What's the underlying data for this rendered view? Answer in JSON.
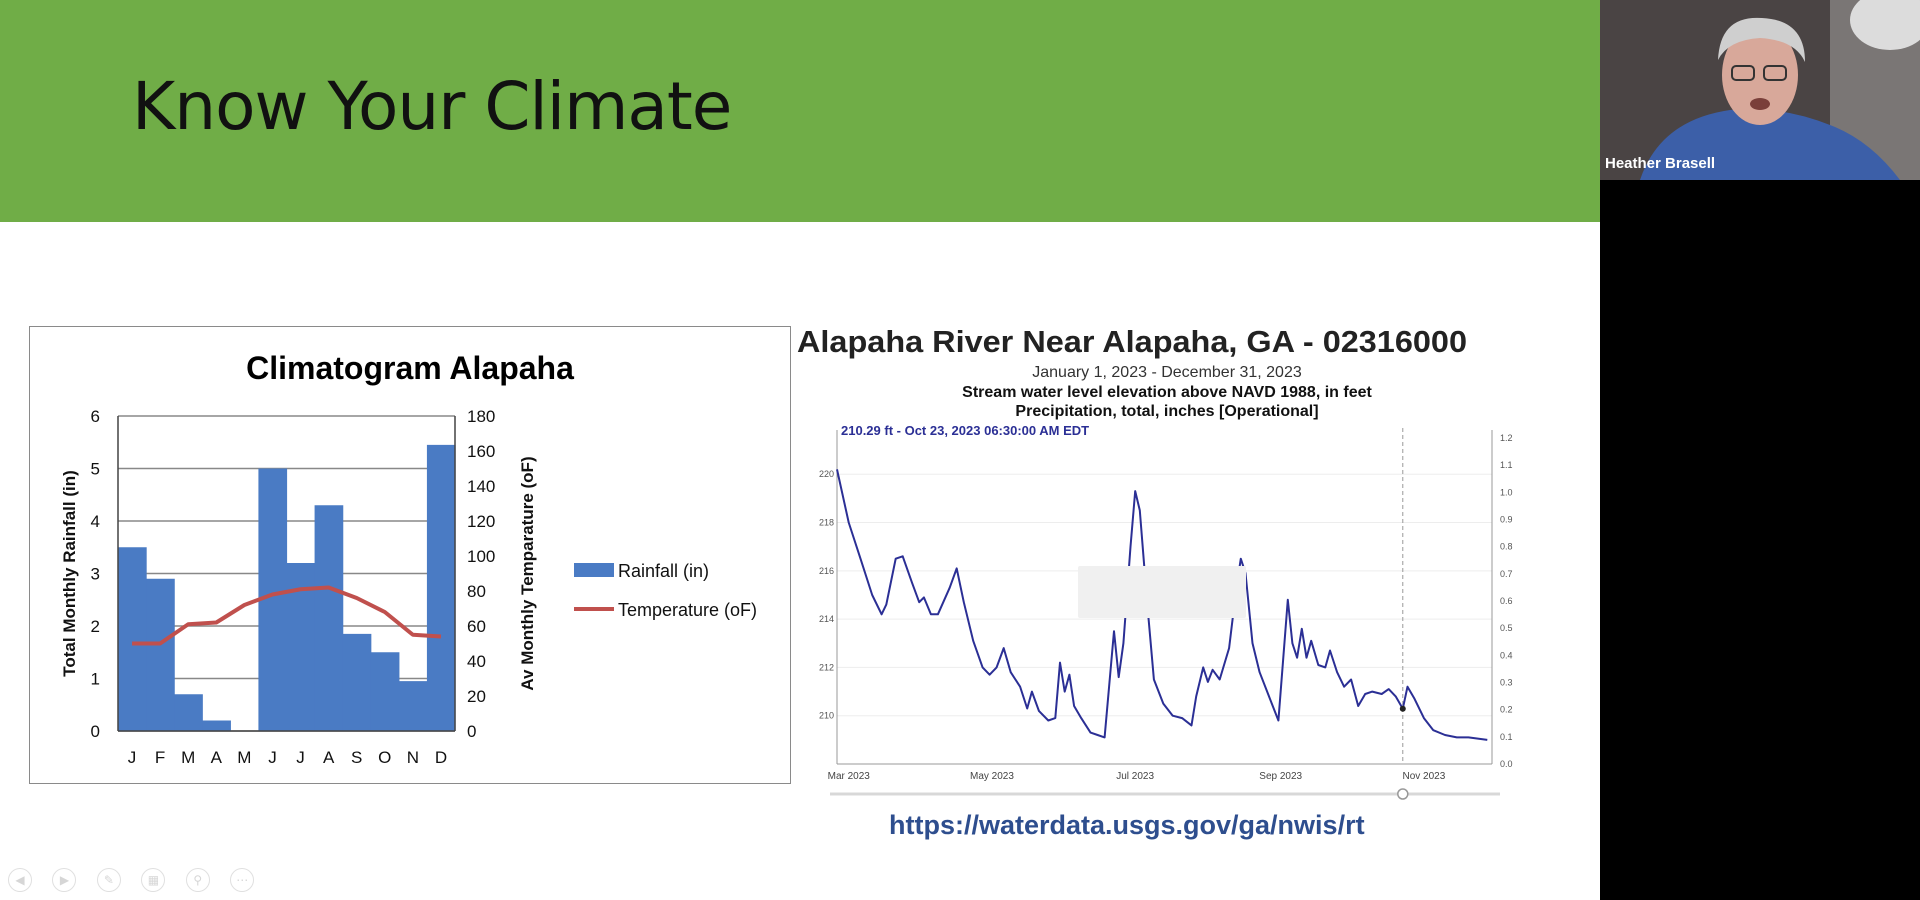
{
  "slide": {
    "title": "Know Your Climate",
    "colors": {
      "banner": "#70ad47",
      "bar": "#4a7bc4",
      "line": "#c0504d",
      "hydro_line": "#2b2f95",
      "link": "#2e4e8e"
    },
    "link": "https://waterdata.usgs.gov/ga/nwis/rt"
  },
  "chart_data": [
    {
      "type": "bar",
      "title": "Climatogram Alapaha",
      "categories": [
        "J",
        "F",
        "M",
        "A",
        "M",
        "J",
        "J",
        "A",
        "S",
        "O",
        "N",
        "D"
      ],
      "ylabel": "Total Monthly Rainfall (in)",
      "y2label": "Av Monthly Temparature (oF)",
      "ylim": [
        0,
        6
      ],
      "y_ticks": [
        "0",
        "1",
        "2",
        "3",
        "4",
        "5",
        "6"
      ],
      "y2lim": [
        0,
        180
      ],
      "y2_ticks": [
        "0",
        "20",
        "40",
        "60",
        "80",
        "100",
        "120",
        "140",
        "160",
        "180"
      ],
      "grid": true,
      "legend_position": "right",
      "series": [
        {
          "name": "Rainfall (in)",
          "type": "bar",
          "axis": "left",
          "values": [
            3.5,
            2.9,
            0.7,
            0.2,
            0,
            5.0,
            3.2,
            4.3,
            1.85,
            1.5,
            0.95,
            5.45
          ]
        },
        {
          "name": "Temperature (oF)",
          "type": "line",
          "axis": "right",
          "values": [
            50,
            50,
            61,
            62,
            72,
            78,
            81,
            82,
            76,
            68,
            55,
            54
          ]
        }
      ]
    },
    {
      "type": "line",
      "title": "Alapaha River Near Alapaha, GA - 02316000",
      "subtitle": "January 1, 2023 - December 31, 2023",
      "subtitle2": "Stream water level elevation above NAVD 1988, in feet",
      "subtitle3": "Precipitation, total, inches [Operational]",
      "readout": "210.29 ft - Oct 23, 2023 06:30:00 AM EDT",
      "ylim": [
        208,
        221.5
      ],
      "y_ticks": [
        "210",
        "212",
        "214",
        "216",
        "218",
        "220"
      ],
      "y2lim": [
        0,
        1.2
      ],
      "y2_ticks": [
        "0.0",
        "0.1",
        "0.2",
        "0.3",
        "0.4",
        "0.5",
        "0.6",
        "0.7",
        "0.8",
        "0.9",
        "1.0",
        "1.1",
        "1.2"
      ],
      "xlim": [
        "2023-02-24",
        "2023-11-30"
      ],
      "x_ticks": [
        {
          "date": "2023-03-01",
          "label": "Mar 2023"
        },
        {
          "date": "2023-05-01",
          "label": "May 2023"
        },
        {
          "date": "2023-07-01",
          "label": "Jul 2023"
        },
        {
          "date": "2023-09-01",
          "label": "Sep 2023"
        },
        {
          "date": "2023-11-01",
          "label": "Nov 2023"
        }
      ],
      "marker_date": "2023-10-23",
      "series": [
        {
          "points": [
            [
              "2023-02-24",
              220.2
            ],
            [
              "2023-03-01",
              218.0
            ],
            [
              "2023-03-06",
              216.5
            ],
            [
              "2023-03-11",
              215.0
            ],
            [
              "2023-03-15",
              214.2
            ],
            [
              "2023-03-17",
              214.6
            ],
            [
              "2023-03-21",
              216.5
            ],
            [
              "2023-03-24",
              216.6
            ],
            [
              "2023-03-28",
              215.5
            ],
            [
              "2023-03-31",
              214.7
            ],
            [
              "2023-04-02",
              214.9
            ],
            [
              "2023-04-05",
              214.2
            ],
            [
              "2023-04-08",
              214.2
            ],
            [
              "2023-04-13",
              215.3
            ],
            [
              "2023-04-16",
              216.1
            ],
            [
              "2023-04-19",
              214.7
            ],
            [
              "2023-04-23",
              213.1
            ],
            [
              "2023-04-27",
              212.0
            ],
            [
              "2023-04-30",
              211.7
            ],
            [
              "2023-05-03",
              212.0
            ],
            [
              "2023-05-06",
              212.8
            ],
            [
              "2023-05-09",
              211.8
            ],
            [
              "2023-05-13",
              211.2
            ],
            [
              "2023-05-16",
              210.3
            ],
            [
              "2023-05-18",
              211.0
            ],
            [
              "2023-05-21",
              210.2
            ],
            [
              "2023-05-25",
              209.8
            ],
            [
              "2023-05-28",
              209.9
            ],
            [
              "2023-05-30",
              212.2
            ],
            [
              "2023-06-01",
              211.0
            ],
            [
              "2023-06-03",
              211.7
            ],
            [
              "2023-06-05",
              210.4
            ],
            [
              "2023-06-08",
              209.9
            ],
            [
              "2023-06-12",
              209.3
            ],
            [
              "2023-06-15",
              209.2
            ],
            [
              "2023-06-18",
              209.1
            ],
            [
              "2023-06-20",
              211.3
            ],
            [
              "2023-06-22",
              213.5
            ],
            [
              "2023-06-24",
              211.6
            ],
            [
              "2023-06-26",
              213.0
            ],
            [
              "2023-06-29",
              217.0
            ],
            [
              "2023-07-01",
              219.3
            ],
            [
              "2023-07-03",
              218.5
            ],
            [
              "2023-07-06",
              214.8
            ],
            [
              "2023-07-09",
              211.5
            ],
            [
              "2023-07-13",
              210.5
            ],
            [
              "2023-07-17",
              210.0
            ],
            [
              "2023-07-21",
              209.9
            ],
            [
              "2023-07-25",
              209.6
            ],
            [
              "2023-07-27",
              210.8
            ],
            [
              "2023-07-30",
              212.0
            ],
            [
              "2023-08-01",
              211.4
            ],
            [
              "2023-08-03",
              211.9
            ],
            [
              "2023-08-06",
              211.5
            ],
            [
              "2023-08-10",
              212.8
            ],
            [
              "2023-08-13",
              215.2
            ],
            [
              "2023-08-15",
              216.5
            ],
            [
              "2023-08-17",
              215.9
            ],
            [
              "2023-08-20",
              213.0
            ],
            [
              "2023-08-23",
              211.8
            ],
            [
              "2023-08-27",
              210.8
            ],
            [
              "2023-08-31",
              209.8
            ],
            [
              "2023-09-02",
              212.3
            ],
            [
              "2023-09-04",
              214.8
            ],
            [
              "2023-09-06",
              213.0
            ],
            [
              "2023-09-08",
              212.4
            ],
            [
              "2023-09-10",
              213.6
            ],
            [
              "2023-09-12",
              212.4
            ],
            [
              "2023-09-14",
              213.1
            ],
            [
              "2023-09-17",
              212.1
            ],
            [
              "2023-09-20",
              212.0
            ],
            [
              "2023-09-22",
              212.7
            ],
            [
              "2023-09-25",
              211.8
            ],
            [
              "2023-09-28",
              211.2
            ],
            [
              "2023-10-01",
              211.5
            ],
            [
              "2023-10-04",
              210.4
            ],
            [
              "2023-10-07",
              210.9
            ],
            [
              "2023-10-10",
              211.0
            ],
            [
              "2023-10-14",
              210.9
            ],
            [
              "2023-10-17",
              211.1
            ],
            [
              "2023-10-20",
              210.8
            ],
            [
              "2023-10-23",
              210.29
            ],
            [
              "2023-10-25",
              211.2
            ],
            [
              "2023-10-28",
              210.7
            ],
            [
              "2023-11-01",
              209.9
            ],
            [
              "2023-11-05",
              209.4
            ],
            [
              "2023-11-10",
              209.2
            ],
            [
              "2023-11-15",
              209.1
            ],
            [
              "2023-11-20",
              209.1
            ],
            [
              "2023-11-28",
              209.0
            ]
          ]
        }
      ]
    }
  ],
  "presentation_toolbar": [
    "back-icon",
    "forward-icon",
    "pen-icon",
    "slides-grid-icon",
    "zoom-icon",
    "more-icon"
  ],
  "video": {
    "participant_name": "Heather Brasell"
  }
}
